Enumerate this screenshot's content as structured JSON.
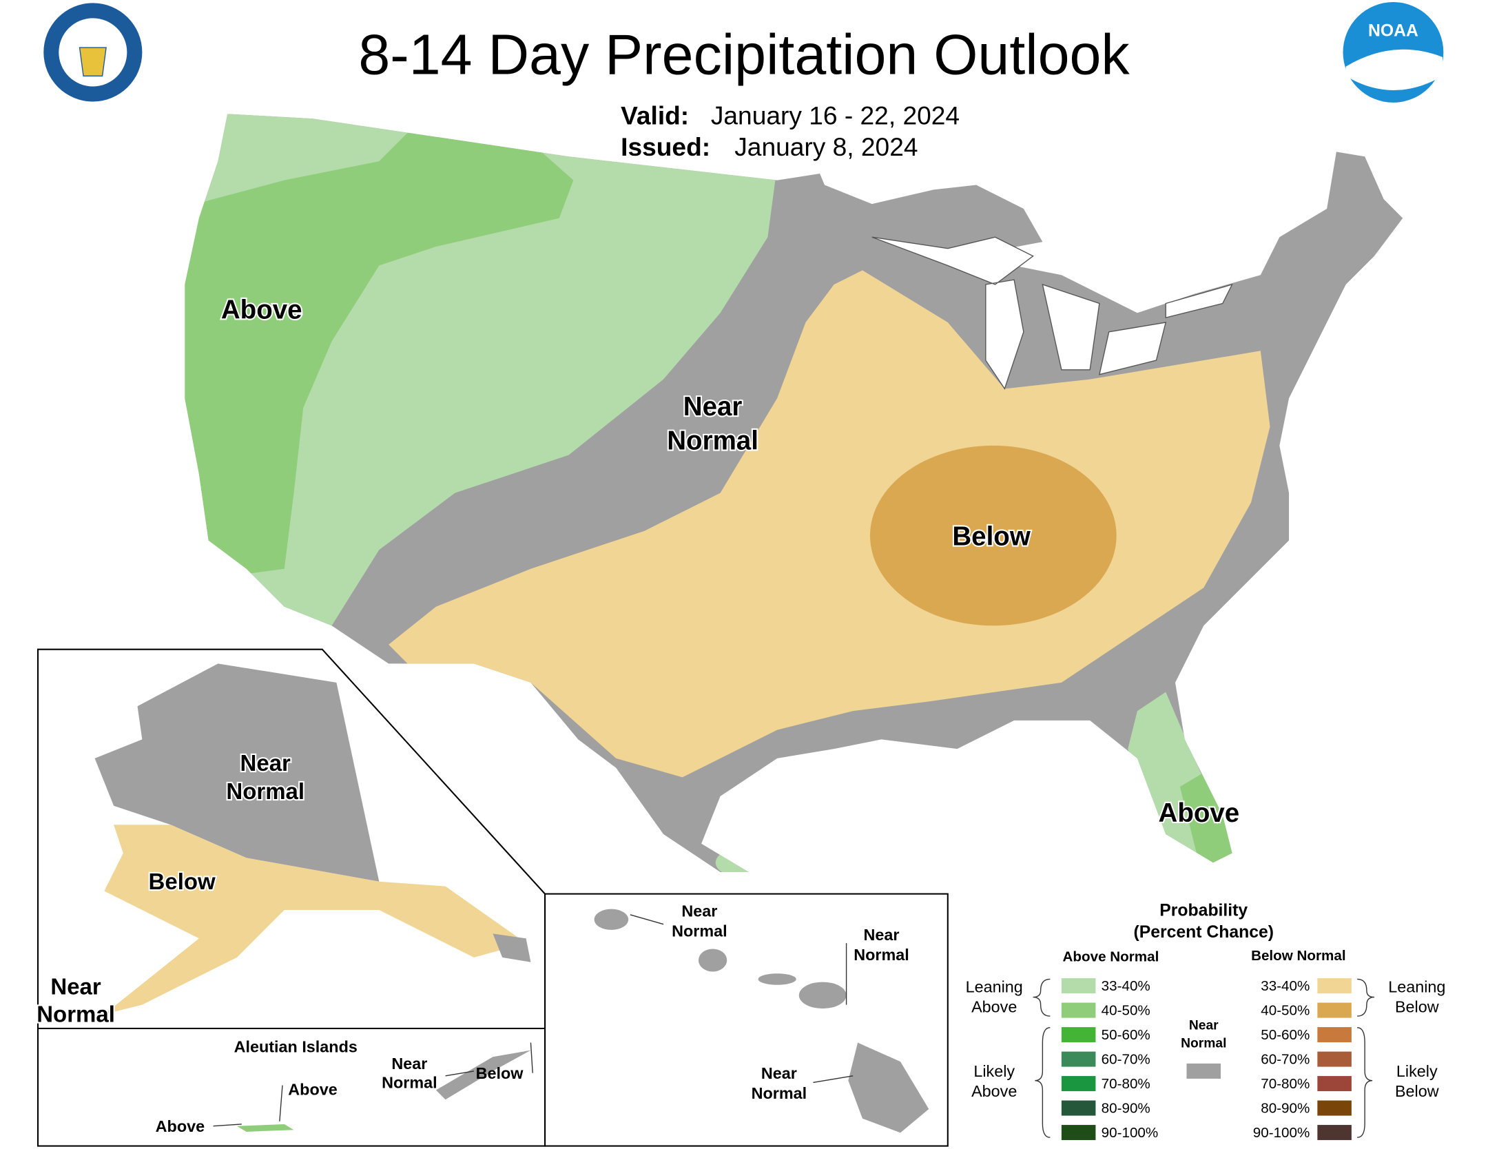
{
  "header": {
    "title": "8-14 Day Precipitation Outlook",
    "valid_label": "Valid:",
    "valid_dates": "January 16 - 22, 2024",
    "issued_label": "Issued:",
    "issued_date": "January 8, 2024"
  },
  "conus_labels": [
    {
      "lines": [
        "Above"
      ]
    },
    {
      "lines": [
        "Near",
        "Normal"
      ]
    },
    {
      "lines": [
        "Below"
      ]
    },
    {
      "lines": [
        "Above"
      ]
    }
  ],
  "alaska_labels": [
    {
      "lines": [
        "Near",
        "Normal"
      ]
    },
    {
      "lines": [
        "Below"
      ]
    },
    {
      "lines": [
        "Near",
        "Normal"
      ]
    }
  ],
  "aleutian": {
    "title": "Aleutian Islands",
    "labels": [
      {
        "lines": [
          "Above"
        ]
      },
      {
        "lines": [
          "Above"
        ]
      },
      {
        "lines": [
          "Near",
          "Normal"
        ]
      },
      {
        "lines": [
          "Below"
        ]
      }
    ]
  },
  "hawaii_labels": [
    {
      "lines": [
        "Near",
        "Normal"
      ]
    },
    {
      "lines": [
        "Near",
        "Normal"
      ]
    },
    {
      "lines": [
        "Near",
        "Normal"
      ]
    }
  ],
  "legend": {
    "title": "Probability",
    "subtitle": "(Percent Chance)",
    "above_heading": "Above Normal",
    "below_heading": "Below Normal",
    "above": [
      {
        "label": "33-40%",
        "color": "#b3dcaa"
      },
      {
        "label": "40-50%",
        "color": "#8fcd7a"
      },
      {
        "label": "50-60%",
        "color": "#44b437"
      },
      {
        "label": "60-70%",
        "color": "#3a8a5a"
      },
      {
        "label": "70-80%",
        "color": "#1a9640"
      },
      {
        "label": "80-90%",
        "color": "#25583a"
      },
      {
        "label": "90-100%",
        "color": "#1e4d17"
      }
    ],
    "below": [
      {
        "label": "33-40%",
        "color": "#f0d595"
      },
      {
        "label": "40-50%",
        "color": "#dba852"
      },
      {
        "label": "50-60%",
        "color": "#c87a3c"
      },
      {
        "label": "60-70%",
        "color": "#a85c38"
      },
      {
        "label": "70-80%",
        "color": "#9c463a"
      },
      {
        "label": "80-90%",
        "color": "#7a4508"
      },
      {
        "label": "90-100%",
        "color": "#4e3530"
      }
    ],
    "near_normal": {
      "lines": [
        "Near",
        "Normal"
      ],
      "color": "#a0a0a0"
    },
    "leaning_above": [
      "Leaning",
      "Above"
    ],
    "likely_above": [
      "Likely",
      "Above"
    ],
    "leaning_below": [
      "Leaning",
      "Below"
    ],
    "likely_below": [
      "Likely",
      "Below"
    ]
  }
}
